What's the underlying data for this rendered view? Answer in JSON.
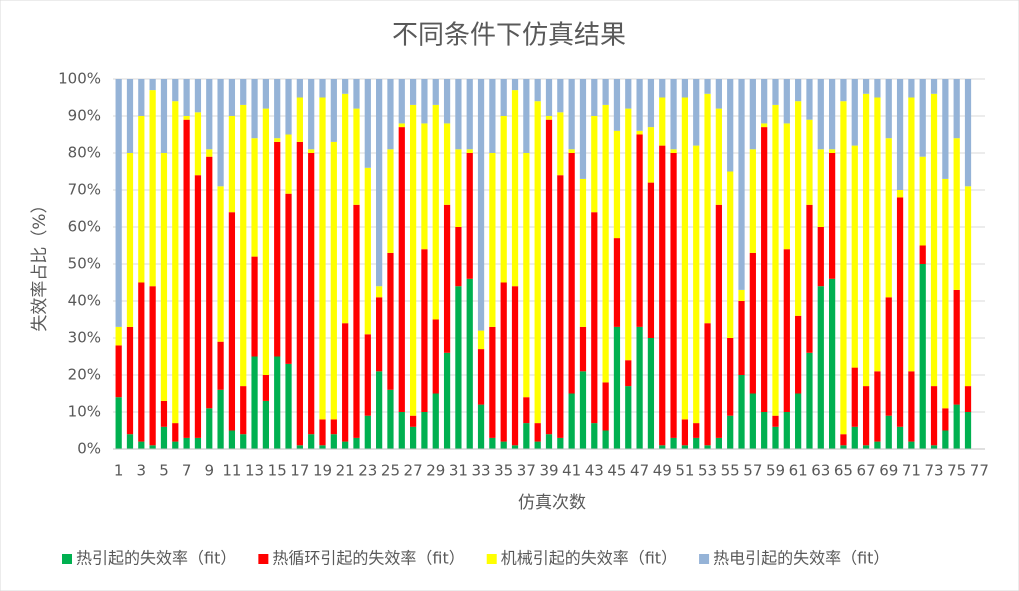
{
  "chart_data": {
    "type": "stacked_bar_100",
    "title": "不同条件下仿真结果",
    "x_label": "仿真次数",
    "y_label": "失效率占比（%）",
    "categories": [
      "1",
      null,
      "3",
      null,
      "5",
      null,
      "7",
      null,
      "9",
      null,
      "11",
      null,
      "13",
      null,
      "15",
      null,
      "17",
      null,
      "19",
      null,
      "21",
      null,
      "23",
      null,
      "25",
      null,
      "27",
      null,
      "29",
      null,
      "31",
      null,
      "33",
      null,
      "35",
      null,
      "37",
      null,
      "39",
      null,
      "41",
      null,
      "43",
      null,
      "45",
      null,
      "47",
      null,
      "49",
      null,
      "51",
      null,
      "53",
      null,
      "55",
      null,
      "57",
      null,
      "59",
      null,
      "61",
      null,
      "63",
      null,
      "65",
      null,
      "67",
      null,
      "69",
      null,
      "71",
      null,
      "73",
      null,
      "75",
      null,
      "77"
    ],
    "ylim": [
      0,
      100
    ],
    "yticks": [
      {
        "value": 0,
        "label": "0%"
      },
      {
        "value": 10,
        "label": "10%"
      },
      {
        "value": 20,
        "label": "20%"
      },
      {
        "value": 30,
        "label": "30%"
      },
      {
        "value": 40,
        "label": "40%"
      },
      {
        "value": 50,
        "label": "50%"
      },
      {
        "value": 60,
        "label": "60%"
      },
      {
        "value": 70,
        "label": "70%"
      },
      {
        "value": 80,
        "label": "80%"
      },
      {
        "value": 90,
        "label": "90%"
      },
      {
        "value": 100,
        "label": "100%"
      }
    ],
    "grid": true,
    "legend": "bottom",
    "series": [
      {
        "name": "热引起的失效率（fit）",
        "color": "#00b050",
        "values": [
          14,
          4,
          2,
          1,
          6,
          2,
          3,
          3,
          11,
          16,
          5,
          4,
          25,
          13,
          25,
          23,
          1,
          4,
          1,
          4,
          2,
          3,
          9,
          21,
          16,
          10,
          6,
          10,
          15,
          26,
          44,
          46,
          12,
          3,
          2,
          1,
          7,
          2,
          4,
          3,
          15,
          21,
          7,
          5,
          33,
          17,
          33,
          30,
          1,
          3,
          1,
          3,
          1,
          3,
          9,
          20,
          15,
          10,
          6,
          10,
          15,
          26,
          44,
          46,
          1,
          6,
          1,
          2,
          9,
          6,
          2,
          50,
          1,
          5,
          12,
          10,
          null
        ]
      },
      {
        "name": "热循环引起的失效率（fit）",
        "color": "#ff0000",
        "values": [
          14,
          29,
          43,
          43,
          7,
          5,
          86,
          71,
          68,
          13,
          59,
          13,
          27,
          7,
          58,
          46,
          82,
          76,
          7,
          4,
          32,
          63,
          22,
          20,
          37,
          77,
          3,
          44,
          20,
          40,
          16,
          34,
          15,
          30,
          43,
          43,
          7,
          5,
          85,
          71,
          65,
          12,
          57,
          13,
          24,
          7,
          52,
          42,
          81,
          77,
          7,
          4,
          33,
          63,
          21,
          20,
          38,
          77,
          3,
          44,
          21,
          40,
          16,
          34,
          3,
          16,
          16,
          19,
          32,
          62,
          19,
          5,
          16,
          6,
          31,
          7,
          null
        ]
      },
      {
        "name": "机械引起的失效率（fit）",
        "color": "#ffff00",
        "values": [
          5,
          47,
          45,
          53,
          67,
          87,
          1,
          17,
          2,
          42,
          26,
          76,
          32,
          72,
          1,
          16,
          12,
          1,
          87,
          75,
          62,
          26,
          45,
          3,
          28,
          1,
          84,
          34,
          58,
          22,
          21,
          1,
          5,
          47,
          45,
          53,
          66,
          87,
          1,
          17,
          1,
          40,
          26,
          75,
          29,
          68,
          1,
          15,
          13,
          1,
          87,
          75,
          62,
          26,
          45,
          3,
          28,
          1,
          84,
          34,
          58,
          23,
          21,
          1,
          90,
          60,
          79,
          74,
          43,
          2,
          74,
          24,
          79,
          62,
          41,
          54,
          null
        ]
      },
      {
        "name": "热电引起的失效率（fit）",
        "color": "#95b3d7",
        "values": [
          67,
          20,
          10,
          3,
          20,
          6,
          10,
          9,
          19,
          29,
          10,
          7,
          16,
          8,
          16,
          15,
          5,
          19,
          5,
          17,
          4,
          8,
          24,
          56,
          19,
          12,
          7,
          12,
          7,
          12,
          19,
          19,
          68,
          20,
          10,
          3,
          20,
          6,
          10,
          9,
          19,
          27,
          10,
          7,
          14,
          8,
          14,
          13,
          5,
          19,
          5,
          18,
          4,
          8,
          25,
          57,
          19,
          12,
          7,
          12,
          6,
          11,
          19,
          19,
          6,
          18,
          4,
          5,
          16,
          30,
          5,
          21,
          4,
          27,
          16,
          29,
          null
        ]
      }
    ]
  }
}
